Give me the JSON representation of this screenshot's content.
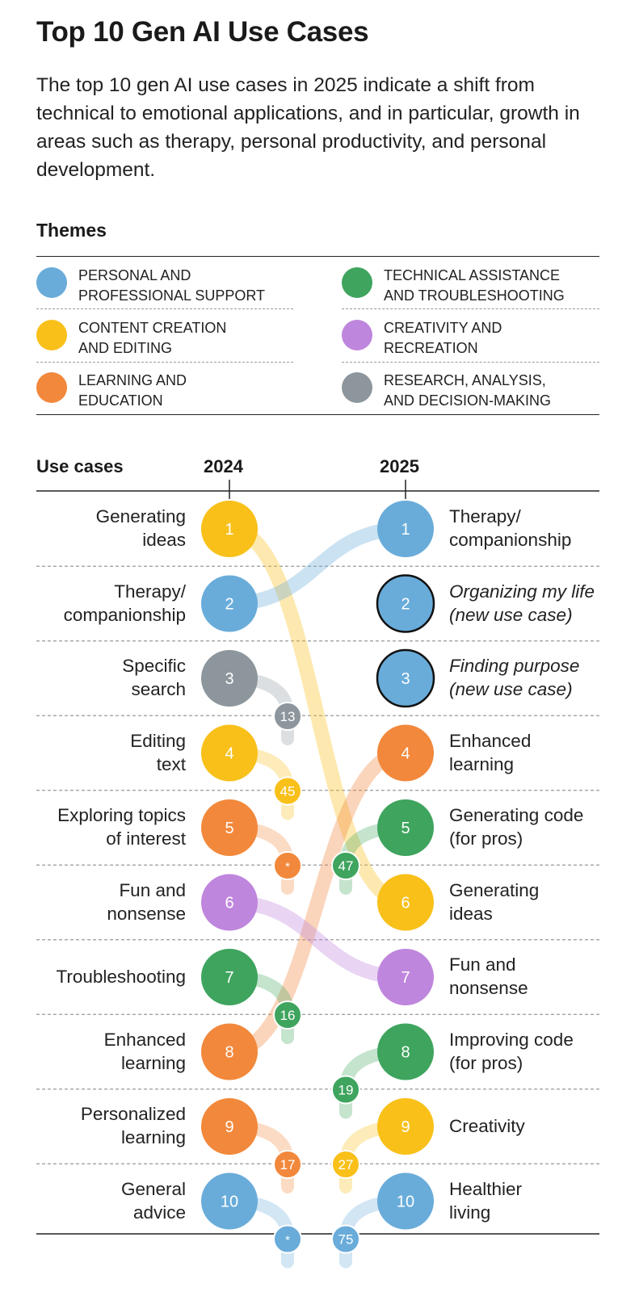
{
  "header": {
    "title": "Top 10 Gen AI Use Cases",
    "subtitle": "The top 10 gen AI use cases in 2025 indicate a shift from technical to emotional applications, and in particular, growth in areas such as therapy, personal productivity, and personal development."
  },
  "themes": {
    "title": "Themes",
    "items": [
      {
        "key": "personal",
        "label_line1": "PERSONAL AND",
        "label_line2": "PROFESSIONAL SUPPORT",
        "color": "#69ACDA"
      },
      {
        "key": "technical",
        "label_line1": "TECHNICAL ASSISTANCE",
        "label_line2": "AND TROUBLESHOOTING",
        "color": "#3EA45E"
      },
      {
        "key": "content",
        "label_line1": "CONTENT CREATION",
        "label_line2": "AND EDITING",
        "color": "#F8C019"
      },
      {
        "key": "creativity",
        "label_line1": "CREATIVITY AND",
        "label_line2": "RECREATION",
        "color": "#BF86DD"
      },
      {
        "key": "learning",
        "label_line1": "LEARNING AND",
        "label_line2": "EDUCATION",
        "color": "#F2883B"
      },
      {
        "key": "research",
        "label_line1": "RESEARCH, ANALYSIS,",
        "label_line2": "AND DECISION-MAKING",
        "color": "#8C969C"
      }
    ]
  },
  "use_cases": {
    "header_label": "Use cases",
    "year_left": "2024",
    "year_right": "2025",
    "left": [
      {
        "rank": "1",
        "line1": "Generating",
        "line2": "ideas",
        "theme": "content"
      },
      {
        "rank": "2",
        "line1": "Therapy/",
        "line2": "companionship",
        "theme": "personal"
      },
      {
        "rank": "3",
        "line1": "Specific",
        "line2": "search",
        "theme": "research"
      },
      {
        "rank": "4",
        "line1": "Editing",
        "line2": "text",
        "theme": "content"
      },
      {
        "rank": "5",
        "line1": "Exploring topics",
        "line2": "of interest",
        "theme": "learning"
      },
      {
        "rank": "6",
        "line1": "Fun and",
        "line2": "nonsense",
        "theme": "creativity"
      },
      {
        "rank": "7",
        "line1": "Troubleshooting",
        "line2": "",
        "theme": "technical"
      },
      {
        "rank": "8",
        "line1": "Enhanced",
        "line2": "learning",
        "theme": "learning"
      },
      {
        "rank": "9",
        "line1": "Personalized",
        "line2": "learning",
        "theme": "learning"
      },
      {
        "rank": "10",
        "line1": "General",
        "line2": "advice",
        "theme": "personal"
      }
    ],
    "right": [
      {
        "rank": "1",
        "line1": "Therapy/",
        "line2": "companionship",
        "theme": "personal",
        "new": false
      },
      {
        "rank": "2",
        "line1": "Organizing my life",
        "line2": "(new use case)",
        "theme": "personal",
        "new": true
      },
      {
        "rank": "3",
        "line1": "Finding purpose",
        "line2": "(new use case)",
        "theme": "personal",
        "new": true
      },
      {
        "rank": "4",
        "line1": "Enhanced",
        "line2": "learning",
        "theme": "learning",
        "new": false
      },
      {
        "rank": "5",
        "line1": "Generating code",
        "line2": "(for pros)",
        "theme": "technical",
        "new": false
      },
      {
        "rank": "6",
        "line1": "Generating",
        "line2": "ideas",
        "theme": "content",
        "new": false
      },
      {
        "rank": "7",
        "line1": "Fun and",
        "line2": "nonsense",
        "theme": "creativity",
        "new": false
      },
      {
        "rank": "8",
        "line1": "Improving code",
        "line2": "(for pros)",
        "theme": "technical",
        "new": false
      },
      {
        "rank": "9",
        "line1": "Creativity",
        "line2": "",
        "theme": "content",
        "new": false
      },
      {
        "rank": "10",
        "line1": "Healthier",
        "line2": "living",
        "theme": "personal",
        "new": false
      }
    ],
    "flows": [
      {
        "from": 1,
        "to": 6,
        "theme": "content"
      },
      {
        "from": 2,
        "to": 1,
        "theme": "personal"
      },
      {
        "from": 8,
        "to": 4,
        "theme": "learning"
      },
      {
        "from": 6,
        "to": 7,
        "theme": "creativity"
      }
    ],
    "dropouts": [
      {
        "from": 3,
        "label": "13",
        "theme": "research"
      },
      {
        "from": 4,
        "label": "45",
        "theme": "content"
      },
      {
        "from": 5,
        "label": "*",
        "theme": "learning"
      },
      {
        "from": 7,
        "label": "16",
        "theme": "technical"
      },
      {
        "from": 9,
        "label": "17",
        "theme": "learning"
      },
      {
        "from": 10,
        "label": "*",
        "theme": "personal"
      }
    ],
    "newcomers": [
      {
        "to": 5,
        "label": "47",
        "theme": "technical"
      },
      {
        "to": 8,
        "label": "19",
        "theme": "technical"
      },
      {
        "to": 9,
        "label": "27",
        "theme": "content"
      },
      {
        "to": 10,
        "label": "75",
        "theme": "personal"
      }
    ]
  }
}
